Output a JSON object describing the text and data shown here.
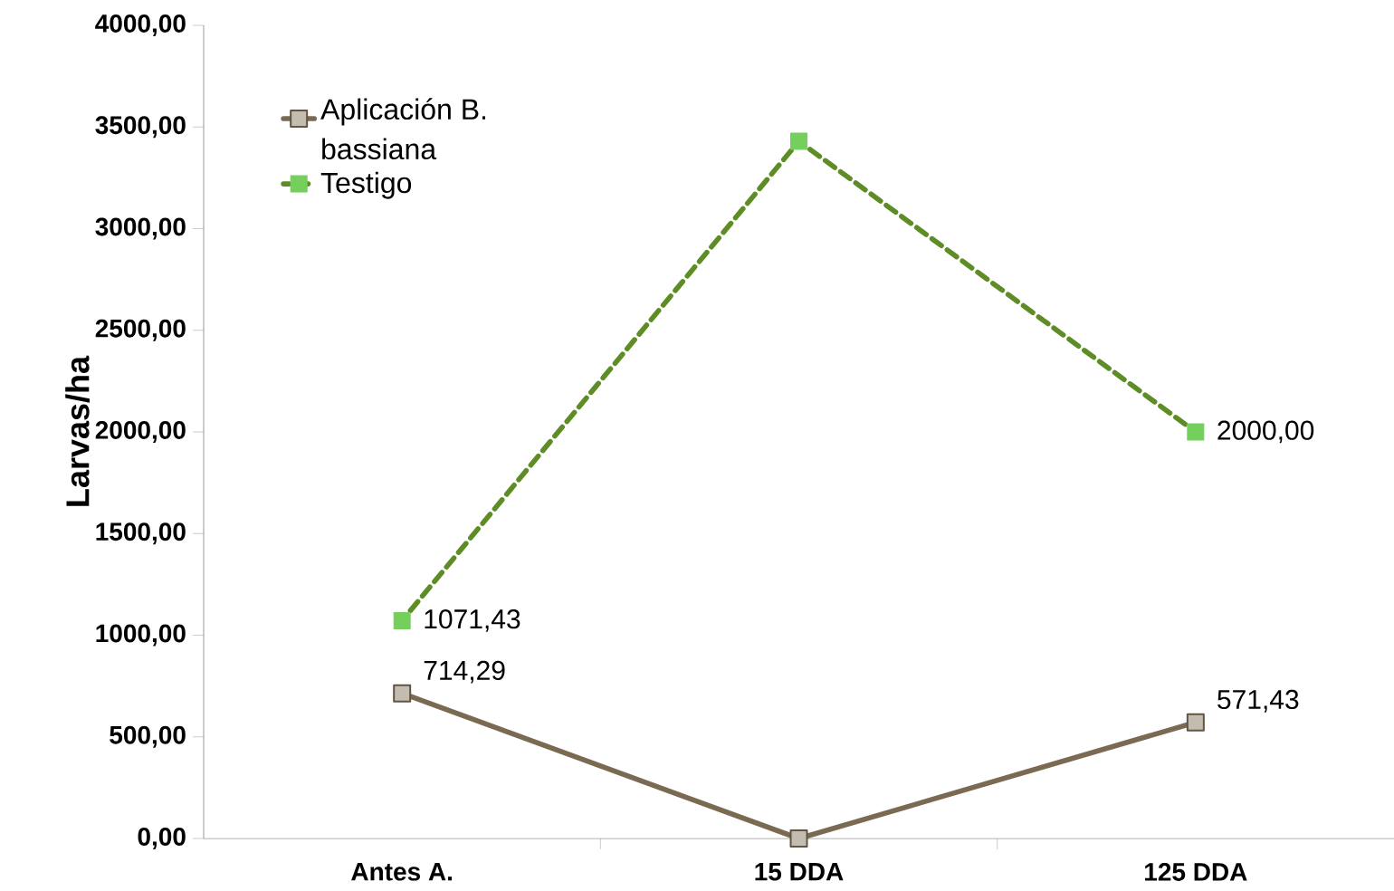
{
  "chart_data": {
    "type": "line",
    "ylabel": "Larvas/ha",
    "categories": [
      "Antes A.",
      "15 DDA",
      "125 DDA"
    ],
    "series": [
      {
        "name": "Aplicación B. bassiana",
        "color": "#7a6a52",
        "values": [
          714.29,
          0,
          571.43
        ],
        "value_labels": [
          "714,29",
          null,
          "571,43"
        ],
        "line_style": "solid"
      },
      {
        "name": "Testigo",
        "color": "#5e8c25",
        "values": [
          1071.43,
          3430,
          2000
        ],
        "value_labels": [
          "1071,43",
          null,
          "2000,00"
        ],
        "line_style": "dashed"
      }
    ],
    "ylim": [
      0,
      4000
    ],
    "yticks": [
      {
        "value": 0,
        "label": "0,00"
      },
      {
        "value": 500,
        "label": "500,00"
      },
      {
        "value": 1000,
        "label": "1000,00"
      },
      {
        "value": 1500,
        "label": "1500,00"
      },
      {
        "value": 2000,
        "label": "2000,00"
      },
      {
        "value": 2500,
        "label": "2500,00"
      },
      {
        "value": 3000,
        "label": "3000,00"
      },
      {
        "value": 3500,
        "label": "3500,00"
      },
      {
        "value": 4000,
        "label": "4000,00"
      }
    ],
    "marker": "square",
    "grid": false,
    "legend": "top left"
  }
}
